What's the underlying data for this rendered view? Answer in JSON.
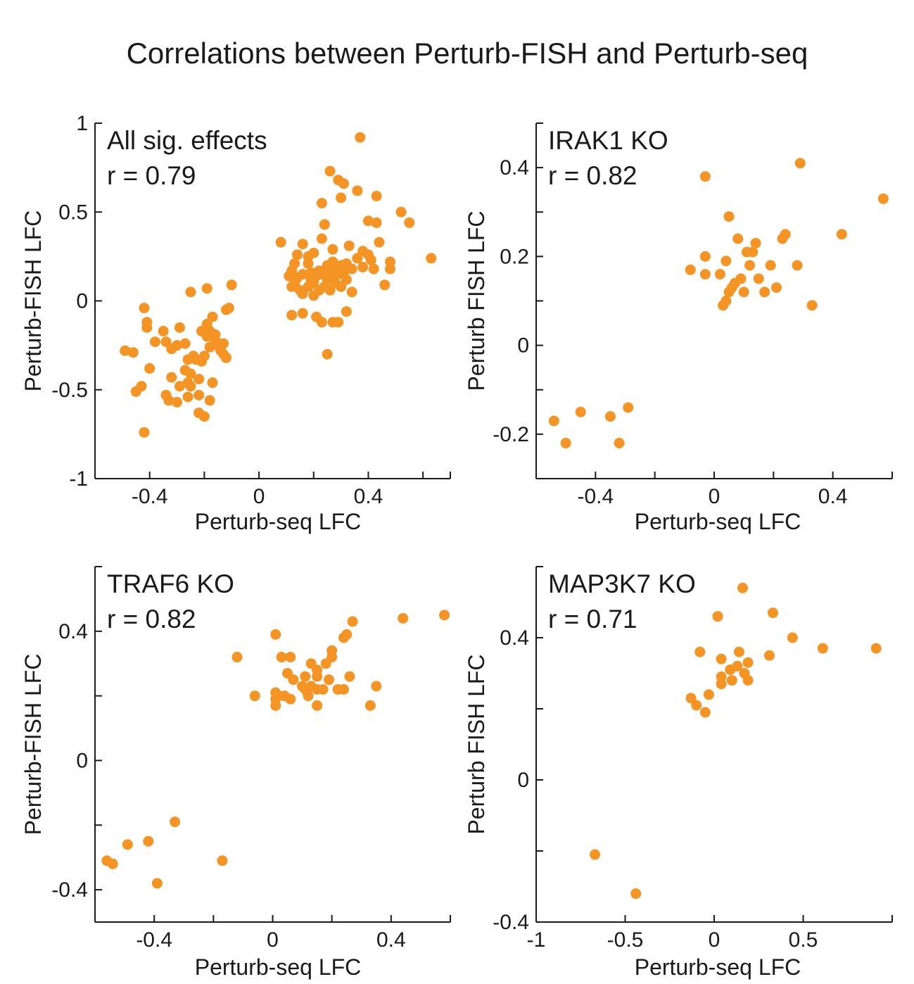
{
  "figure_title": "Correlations between Perturb-FISH and Perturb-seq",
  "colors": {
    "point": "#f39424",
    "text": "#1a1a1a",
    "axis": "#1a1a1a"
  },
  "chart_data": [
    {
      "type": "scatter",
      "title": "All sig. effects",
      "annotation": "r = 0.79",
      "xlabel": "Perturb-seq LFC",
      "ylabel": "Perturb-FISH LFC",
      "xlim": [
        -0.6,
        0.7
      ],
      "ylim": [
        -1,
        1
      ],
      "xticks": [
        -0.4,
        0,
        0.4
      ],
      "xtick_labels": [
        "-0.4",
        "0",
        "0.4"
      ],
      "xminor": [
        -0.2,
        0.2,
        0.6
      ],
      "yticks": [
        -1,
        -0.5,
        0,
        0.5,
        1
      ],
      "ytick_labels": [
        "-1",
        "-0.5",
        "0",
        "0.5",
        "1"
      ],
      "yminor": [],
      "points": [
        [
          0.37,
          0.92
        ],
        [
          0.26,
          0.73
        ],
        [
          0.29,
          0.68
        ],
        [
          0.31,
          0.66
        ],
        [
          0.36,
          0.62
        ],
        [
          0.3,
          0.58
        ],
        [
          0.43,
          0.59
        ],
        [
          0.23,
          0.55
        ],
        [
          0.52,
          0.5
        ],
        [
          0.4,
          0.45
        ],
        [
          0.43,
          0.44
        ],
        [
          0.55,
          0.44
        ],
        [
          0.24,
          0.43
        ],
        [
          0.23,
          0.35
        ],
        [
          0.08,
          0.33
        ],
        [
          0.16,
          0.32
        ],
        [
          0.33,
          0.31
        ],
        [
          0.44,
          0.33
        ],
        [
          0.27,
          0.29
        ],
        [
          0.38,
          0.28
        ],
        [
          0.4,
          0.26
        ],
        [
          0.2,
          0.27
        ],
        [
          0.14,
          0.26
        ],
        [
          0.18,
          0.25
        ],
        [
          0.36,
          0.24
        ],
        [
          0.41,
          0.23
        ],
        [
          0.27,
          0.22
        ],
        [
          0.32,
          0.21
        ],
        [
          0.63,
          0.24
        ],
        [
          0.48,
          0.22
        ],
        [
          0.13,
          0.21
        ],
        [
          0.18,
          0.21
        ],
        [
          0.25,
          0.2
        ],
        [
          0.3,
          0.2
        ],
        [
          0.38,
          0.19
        ],
        [
          0.42,
          0.18
        ],
        [
          0.48,
          0.18
        ],
        [
          0.22,
          0.17
        ],
        [
          0.28,
          0.18
        ],
        [
          0.34,
          0.18
        ],
        [
          0.12,
          0.17
        ],
        [
          0.19,
          0.16
        ],
        [
          0.26,
          0.16
        ],
        [
          0.31,
          0.16
        ],
        [
          0.16,
          0.15
        ],
        [
          0.23,
          0.15
        ],
        [
          0.29,
          0.15
        ],
        [
          0.11,
          0.14
        ],
        [
          0.21,
          0.14
        ],
        [
          0.27,
          0.14
        ],
        [
          0.14,
          0.13
        ],
        [
          0.19,
          0.12
        ],
        [
          0.25,
          0.12
        ],
        [
          0.32,
          0.12
        ],
        [
          0.13,
          0.1
        ],
        [
          0.2,
          0.1
        ],
        [
          0.28,
          0.1
        ],
        [
          0.46,
          0.09
        ],
        [
          0.12,
          0.08
        ],
        [
          0.18,
          0.08
        ],
        [
          0.24,
          0.08
        ],
        [
          0.3,
          0.08
        ],
        [
          0.15,
          0.06
        ],
        [
          0.22,
          0.06
        ],
        [
          0.26,
          0.06
        ],
        [
          0.34,
          0.05
        ],
        [
          0.16,
          0.04
        ],
        [
          0.2,
          0.03
        ],
        [
          0.32,
          -0.06
        ],
        [
          0.12,
          -0.08
        ],
        [
          0.16,
          -0.07
        ],
        [
          0.21,
          -0.09
        ],
        [
          0.23,
          -0.12
        ],
        [
          0.27,
          -0.12
        ],
        [
          0.29,
          -0.12
        ],
        [
          0.25,
          -0.3
        ],
        [
          -0.42,
          -0.04
        ],
        [
          -0.41,
          -0.12
        ],
        [
          -0.41,
          -0.15
        ],
        [
          -0.35,
          -0.17
        ],
        [
          -0.29,
          -0.15
        ],
        [
          -0.38,
          -0.23
        ],
        [
          -0.34,
          -0.23
        ],
        [
          -0.32,
          -0.27
        ],
        [
          -0.3,
          -0.25
        ],
        [
          -0.27,
          -0.24
        ],
        [
          -0.49,
          -0.28
        ],
        [
          -0.46,
          -0.29
        ],
        [
          -0.24,
          -0.31
        ],
        [
          -0.26,
          -0.33
        ],
        [
          -0.23,
          -0.33
        ],
        [
          -0.21,
          -0.34
        ],
        [
          -0.4,
          -0.38
        ],
        [
          -0.27,
          -0.39
        ],
        [
          -0.25,
          -0.41
        ],
        [
          -0.22,
          -0.44
        ],
        [
          -0.32,
          -0.43
        ],
        [
          -0.26,
          -0.46
        ],
        [
          -0.29,
          -0.48
        ],
        [
          -0.25,
          -0.48
        ],
        [
          -0.43,
          -0.48
        ],
        [
          -0.45,
          -0.51
        ],
        [
          -0.34,
          -0.53
        ],
        [
          -0.3,
          -0.57
        ],
        [
          -0.33,
          -0.56
        ],
        [
          -0.22,
          -0.63
        ],
        [
          -0.2,
          -0.65
        ],
        [
          -0.42,
          -0.74
        ],
        [
          -0.19,
          -0.2
        ],
        [
          -0.21,
          -0.17
        ],
        [
          -0.19,
          -0.13
        ],
        [
          -0.18,
          -0.17
        ],
        [
          -0.16,
          -0.19
        ],
        [
          -0.15,
          -0.25
        ],
        [
          -0.14,
          -0.28
        ],
        [
          -0.13,
          -0.3
        ],
        [
          -0.12,
          -0.32
        ],
        [
          -0.13,
          -0.24
        ],
        [
          -0.18,
          -0.26
        ],
        [
          -0.2,
          -0.31
        ],
        [
          -0.22,
          -0.53
        ],
        [
          -0.17,
          -0.46
        ],
        [
          -0.18,
          -0.56
        ],
        [
          -0.26,
          -0.54
        ],
        [
          -0.25,
          0.05
        ],
        [
          -0.19,
          0.07
        ],
        [
          -0.1,
          0.09
        ],
        [
          -0.11,
          -0.04
        ],
        [
          -0.12,
          -0.05
        ],
        [
          -0.17,
          -0.09
        ],
        [
          -0.16,
          -0.22
        ]
      ]
    },
    {
      "type": "scatter",
      "title": "IRAK1 KO",
      "annotation": "r = 0.82",
      "xlabel": "Perturb-seq LFC",
      "ylabel": "Perturb FISH LFC",
      "xlim": [
        -0.6,
        0.6
      ],
      "ylim": [
        -0.3,
        0.5
      ],
      "xticks": [
        -0.4,
        0,
        0.4
      ],
      "xtick_labels": [
        "-0.4",
        "0",
        "0.4"
      ],
      "xminor": [
        -0.2,
        0.2
      ],
      "yticks": [
        -0.2,
        0,
        0.2,
        0.4
      ],
      "ytick_labels": [
        "-0.2",
        "0",
        "0.2",
        "0.4"
      ],
      "yminor": [
        -0.1,
        0.1,
        0.3
      ],
      "points": [
        [
          0.29,
          0.41
        ],
        [
          -0.03,
          0.38
        ],
        [
          0.57,
          0.33
        ],
        [
          0.05,
          0.29
        ],
        [
          0.24,
          0.25
        ],
        [
          0.23,
          0.24
        ],
        [
          0.43,
          0.25
        ],
        [
          0.08,
          0.24
        ],
        [
          0.14,
          0.23
        ],
        [
          0.11,
          0.21
        ],
        [
          0.13,
          0.21
        ],
        [
          -0.03,
          0.2
        ],
        [
          0.04,
          0.19
        ],
        [
          0.12,
          0.18
        ],
        [
          0.28,
          0.18
        ],
        [
          0.19,
          0.18
        ],
        [
          -0.08,
          0.17
        ],
        [
          0.02,
          0.16
        ],
        [
          -0.03,
          0.16
        ],
        [
          0.09,
          0.15
        ],
        [
          0.15,
          0.15
        ],
        [
          0.07,
          0.14
        ],
        [
          0.21,
          0.13
        ],
        [
          0.06,
          0.13
        ],
        [
          0.05,
          0.12
        ],
        [
          0.1,
          0.12
        ],
        [
          0.17,
          0.12
        ],
        [
          0.04,
          0.1
        ],
        [
          0.03,
          0.09
        ],
        [
          0.33,
          0.09
        ],
        [
          -0.54,
          -0.17
        ],
        [
          -0.45,
          -0.15
        ],
        [
          -0.35,
          -0.16
        ],
        [
          -0.29,
          -0.14
        ],
        [
          -0.5,
          -0.22
        ],
        [
          -0.32,
          -0.22
        ]
      ]
    },
    {
      "type": "scatter",
      "title": "TRAF6 KO",
      "annotation": "r = 0.82",
      "xlabel": "Perturb-seq LFC",
      "ylabel": "Perturb-FISH LFC",
      "xlim": [
        -0.6,
        0.6
      ],
      "ylim": [
        -0.5,
        0.6
      ],
      "xticks": [
        -0.4,
        0,
        0.4
      ],
      "xtick_labels": [
        "-0.4",
        "0",
        "0.4"
      ],
      "xminor": [
        -0.2,
        0.2
      ],
      "yticks": [
        -0.4,
        0,
        0.4
      ],
      "ytick_labels": [
        "-0.4",
        "0",
        "0.4"
      ],
      "yminor": [
        -0.2,
        0.2
      ],
      "points": [
        [
          0.58,
          0.45
        ],
        [
          0.44,
          0.44
        ],
        [
          0.27,
          0.43
        ],
        [
          0.25,
          0.39
        ],
        [
          0.24,
          0.38
        ],
        [
          0.01,
          0.39
        ],
        [
          -0.12,
          0.32
        ],
        [
          0.03,
          0.32
        ],
        [
          0.06,
          0.32
        ],
        [
          0.2,
          0.34
        ],
        [
          0.2,
          0.32
        ],
        [
          0.13,
          0.3
        ],
        [
          0.18,
          0.3
        ],
        [
          0.15,
          0.28
        ],
        [
          0.05,
          0.27
        ],
        [
          0.07,
          0.25
        ],
        [
          0.11,
          0.26
        ],
        [
          0.15,
          0.26
        ],
        [
          0.19,
          0.25
        ],
        [
          0.26,
          0.26
        ],
        [
          0.1,
          0.23
        ],
        [
          0.13,
          0.23
        ],
        [
          0.11,
          0.22
        ],
        [
          0.15,
          0.22
        ],
        [
          0.17,
          0.22
        ],
        [
          0.22,
          0.22
        ],
        [
          0.24,
          0.22
        ],
        [
          0.35,
          0.23
        ],
        [
          -0.06,
          0.2
        ],
        [
          0.01,
          0.21
        ],
        [
          0.02,
          0.2
        ],
        [
          0.04,
          0.2
        ],
        [
          0.12,
          0.2
        ],
        [
          0.01,
          0.19
        ],
        [
          0.06,
          0.19
        ],
        [
          0.01,
          0.17
        ],
        [
          0.15,
          0.17
        ],
        [
          0.33,
          0.17
        ],
        [
          -0.33,
          -0.19
        ],
        [
          -0.49,
          -0.26
        ],
        [
          -0.42,
          -0.25
        ],
        [
          -0.56,
          -0.31
        ],
        [
          -0.54,
          -0.32
        ],
        [
          -0.17,
          -0.31
        ],
        [
          -0.39,
          -0.38
        ]
      ]
    },
    {
      "type": "scatter",
      "title": "MAP3K7 KO",
      "annotation": "r = 0.71",
      "xlabel": "Perturb-seq LFC",
      "ylabel": "Perturb FISH LFC",
      "xlim": [
        -1,
        1
      ],
      "ylim": [
        -0.4,
        0.6
      ],
      "xticks": [
        -1,
        -0.5,
        0,
        0.5
      ],
      "xtick_labels": [
        "-1",
        "-0.5",
        "0",
        "0.5"
      ],
      "xminor": [],
      "yticks": [
        -0.4,
        0,
        0.4
      ],
      "ytick_labels": [
        "-0.4",
        "0",
        "0.4"
      ],
      "yminor": [
        -0.2,
        0.2
      ],
      "points": [
        [
          0.16,
          0.54
        ],
        [
          0.02,
          0.46
        ],
        [
          0.33,
          0.47
        ],
        [
          0.44,
          0.4
        ],
        [
          0.61,
          0.37
        ],
        [
          0.91,
          0.37
        ],
        [
          -0.08,
          0.36
        ],
        [
          0.14,
          0.36
        ],
        [
          0.31,
          0.35
        ],
        [
          0.04,
          0.34
        ],
        [
          0.19,
          0.33
        ],
        [
          0.13,
          0.32
        ],
        [
          0.09,
          0.31
        ],
        [
          0.17,
          0.3
        ],
        [
          0.04,
          0.29
        ],
        [
          0.1,
          0.28
        ],
        [
          0.19,
          0.28
        ],
        [
          0.04,
          0.27
        ],
        [
          -0.13,
          0.23
        ],
        [
          -0.03,
          0.24
        ],
        [
          -0.1,
          0.21
        ],
        [
          -0.05,
          0.19
        ],
        [
          -0.67,
          -0.21
        ],
        [
          -0.44,
          -0.32
        ]
      ]
    }
  ]
}
